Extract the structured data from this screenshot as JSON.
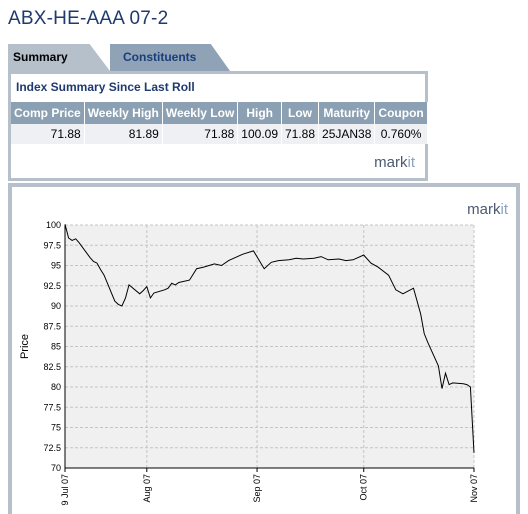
{
  "page_title": "ABX-HE-AAA 07-2",
  "tabs": [
    {
      "label": "Summary",
      "active": true
    },
    {
      "label": "Constituents",
      "active": false
    }
  ],
  "summary": {
    "heading": "Index Summary Since Last Roll",
    "columns": [
      "Comp Price",
      "Weekly High",
      "Weekly Low",
      "High",
      "Low",
      "Maturity",
      "Coupon"
    ],
    "row": [
      "71.88",
      "81.89",
      "71.88",
      "100.09",
      "71.88",
      "25JAN38",
      "0.760%"
    ]
  },
  "logo": {
    "main": "mark",
    "accent": "it"
  },
  "colors": {
    "title": "#1f3a6e",
    "tab_bg": "#b6c0cb",
    "header_bg": "#8ca0b3",
    "line": "#000000"
  },
  "chart_data": {
    "type": "line",
    "title": "",
    "xlabel": "",
    "ylabel": "Price",
    "ylim": [
      70,
      100
    ],
    "yticks": [
      "70",
      "72.5",
      "75",
      "77.5",
      "80",
      "82.5",
      "85",
      "87.5",
      "90",
      "92.5",
      "95",
      "97.5",
      "100"
    ],
    "xticks": [
      "9 Jul 07",
      "Aug 07",
      "Sep 07",
      "Oct 07",
      "Nov 07"
    ],
    "grid": true,
    "series": [
      {
        "x": [
          "2007-07-09",
          "2007-07-10",
          "2007-07-11",
          "2007-07-12",
          "2007-07-13",
          "2007-07-16",
          "2007-07-17",
          "2007-07-18",
          "2007-07-19",
          "2007-07-20",
          "2007-07-23",
          "2007-07-24",
          "2007-07-25",
          "2007-07-26",
          "2007-07-27",
          "2007-07-30",
          "2007-07-31",
          "2007-08-01",
          "2007-08-02",
          "2007-08-03",
          "2007-08-06",
          "2007-08-07",
          "2007-08-08",
          "2007-08-09",
          "2007-08-10",
          "2007-08-13",
          "2007-08-15",
          "2007-08-17",
          "2007-08-20",
          "2007-08-22",
          "2007-08-24",
          "2007-08-28",
          "2007-08-31",
          "2007-09-03",
          "2007-09-05",
          "2007-09-07",
          "2007-09-10",
          "2007-09-12",
          "2007-09-14",
          "2007-09-17",
          "2007-09-19",
          "2007-09-21",
          "2007-09-24",
          "2007-09-26",
          "2007-09-28",
          "2007-10-01",
          "2007-10-03",
          "2007-10-05",
          "2007-10-08",
          "2007-10-10",
          "2007-10-12",
          "2007-10-15",
          "2007-10-17",
          "2007-10-18",
          "2007-10-19",
          "2007-10-22",
          "2007-10-23",
          "2007-10-24",
          "2007-10-25",
          "2007-10-26",
          "2007-10-29",
          "2007-10-30",
          "2007-10-31",
          "2007-11-01"
        ],
        "y": [
          100.09,
          98.4,
          98.1,
          98.3,
          97.8,
          96.0,
          95.5,
          95.3,
          94.5,
          93.8,
          90.6,
          90.2,
          90.0,
          91.0,
          92.6,
          91.5,
          91.9,
          92.4,
          91.0,
          91.6,
          92.0,
          92.2,
          92.8,
          92.6,
          92.9,
          93.2,
          94.6,
          94.8,
          95.2,
          95.0,
          95.6,
          96.4,
          96.8,
          94.6,
          95.4,
          95.6,
          95.7,
          95.9,
          95.8,
          95.9,
          96.1,
          95.7,
          95.8,
          95.6,
          95.7,
          96.3,
          95.3,
          94.8,
          93.8,
          92.0,
          91.5,
          92.2,
          89.0,
          86.6,
          85.5,
          82.6,
          79.8,
          81.7,
          80.3,
          80.5,
          80.4,
          80.3,
          80.0,
          71.88
        ]
      }
    ]
  }
}
